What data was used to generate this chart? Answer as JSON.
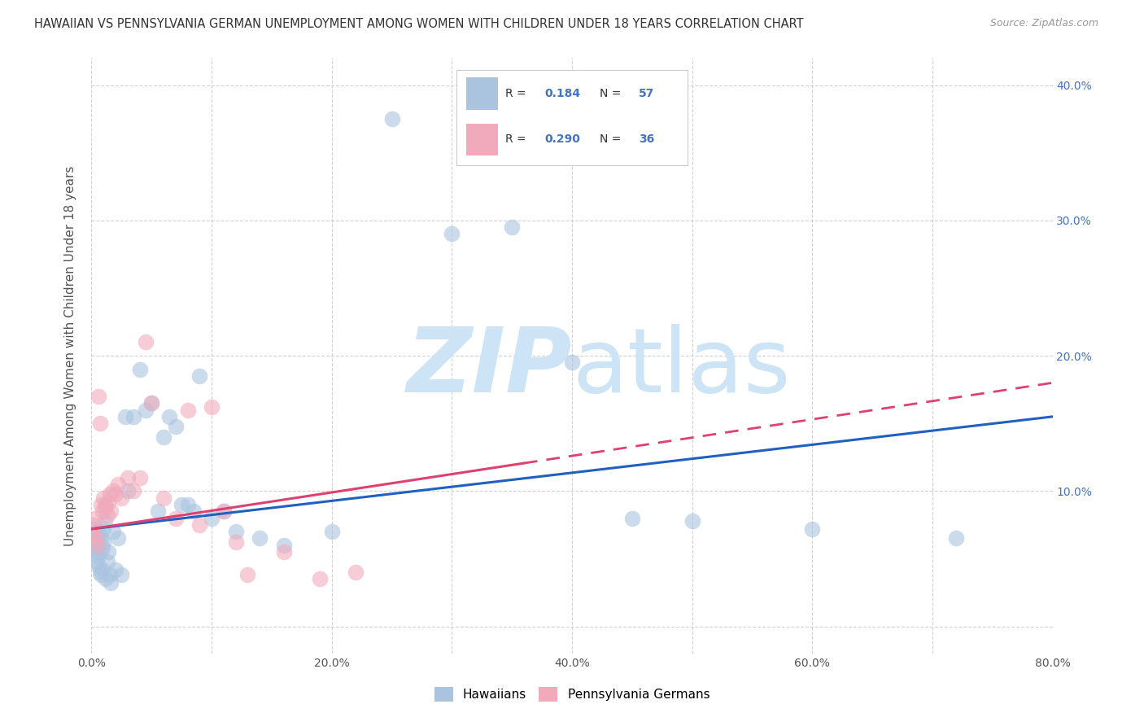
{
  "title": "HAWAIIAN VS PENNSYLVANIA GERMAN UNEMPLOYMENT AMONG WOMEN WITH CHILDREN UNDER 18 YEARS CORRELATION CHART",
  "source": "Source: ZipAtlas.com",
  "ylabel": "Unemployment Among Women with Children Under 18 years",
  "xlim": [
    0.0,
    0.8
  ],
  "ylim": [
    -0.02,
    0.42
  ],
  "xticks": [
    0.0,
    0.1,
    0.2,
    0.3,
    0.4,
    0.5,
    0.6,
    0.7,
    0.8
  ],
  "xticklabels": [
    "0.0%",
    "",
    "20.0%",
    "",
    "40.0%",
    "",
    "60.0%",
    "",
    "80.0%"
  ],
  "yticks": [
    0.0,
    0.1,
    0.2,
    0.3,
    0.4
  ],
  "right_yticklabels": [
    "",
    "10.0%",
    "20.0%",
    "30.0%",
    "40.0%"
  ],
  "hawaiians_R": 0.184,
  "hawaiians_N": 57,
  "pennsylvania_R": 0.29,
  "pennsylvania_N": 36,
  "hawaiian_color": "#aac4e0",
  "pennsylvania_color": "#f0aabb",
  "hawaiian_line_color": "#2060c0",
  "pennsylvania_line_color": "#e04070",
  "watermark_color": "#cce4f5",
  "legend_label_1": "Hawaiians",
  "legend_label_2": "Pennsylvania Germans",
  "hawaiians_x": [
    0.001,
    0.002,
    0.002,
    0.003,
    0.003,
    0.004,
    0.004,
    0.005,
    0.005,
    0.006,
    0.006,
    0.007,
    0.007,
    0.008,
    0.008,
    0.009,
    0.009,
    0.01,
    0.01,
    0.011,
    0.012,
    0.013,
    0.014,
    0.015,
    0.016,
    0.018,
    0.02,
    0.022,
    0.025,
    0.028,
    0.03,
    0.035,
    0.04,
    0.045,
    0.05,
    0.055,
    0.06,
    0.065,
    0.07,
    0.075,
    0.08,
    0.085,
    0.09,
    0.1,
    0.11,
    0.12,
    0.14,
    0.16,
    0.2,
    0.25,
    0.3,
    0.35,
    0.4,
    0.45,
    0.5,
    0.6,
    0.72
  ],
  "hawaiians_y": [
    0.068,
    0.072,
    0.058,
    0.065,
    0.055,
    0.06,
    0.048,
    0.07,
    0.052,
    0.068,
    0.045,
    0.055,
    0.04,
    0.065,
    0.038,
    0.058,
    0.042,
    0.072,
    0.062,
    0.078,
    0.035,
    0.048,
    0.055,
    0.038,
    0.032,
    0.07,
    0.042,
    0.065,
    0.038,
    0.155,
    0.1,
    0.155,
    0.19,
    0.16,
    0.165,
    0.085,
    0.14,
    0.155,
    0.148,
    0.09,
    0.09,
    0.085,
    0.185,
    0.08,
    0.085,
    0.07,
    0.065,
    0.06,
    0.07,
    0.375,
    0.29,
    0.295,
    0.195,
    0.08,
    0.078,
    0.072,
    0.065
  ],
  "pennsylvania_x": [
    0.001,
    0.002,
    0.003,
    0.004,
    0.005,
    0.006,
    0.007,
    0.008,
    0.009,
    0.01,
    0.011,
    0.012,
    0.013,
    0.014,
    0.015,
    0.016,
    0.018,
    0.02,
    0.022,
    0.025,
    0.03,
    0.035,
    0.04,
    0.045,
    0.05,
    0.06,
    0.07,
    0.08,
    0.09,
    0.1,
    0.11,
    0.12,
    0.13,
    0.16,
    0.19,
    0.22
  ],
  "pennsylvania_y": [
    0.068,
    0.075,
    0.08,
    0.065,
    0.06,
    0.17,
    0.15,
    0.09,
    0.085,
    0.095,
    0.09,
    0.088,
    0.082,
    0.092,
    0.098,
    0.085,
    0.1,
    0.098,
    0.105,
    0.095,
    0.11,
    0.1,
    0.11,
    0.21,
    0.165,
    0.095,
    0.08,
    0.16,
    0.075,
    0.162,
    0.085,
    0.062,
    0.038,
    0.055,
    0.035,
    0.04
  ]
}
